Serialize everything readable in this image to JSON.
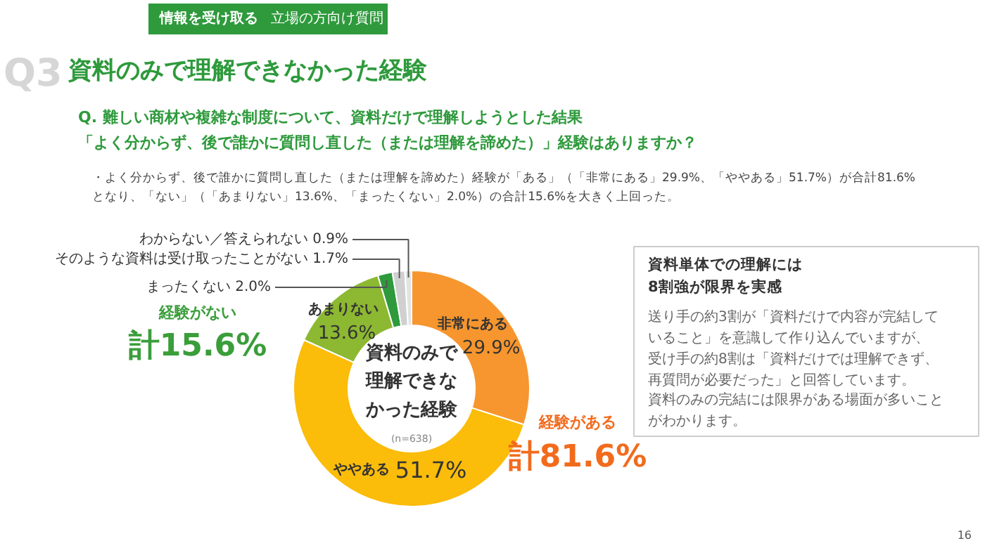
{
  "chart_data": {
    "type": "donut",
    "title": "資料のみで理解できなかった経験",
    "subtitle": "Q. 難しい商材や複雑な制度について、資料だけで理解しようとした結果「よく分からず、後で誰かに質問し直した（または理解を諦めた）」経験はありますか？",
    "categories": [
      "非常にある",
      "ややある",
      "あまりない",
      "まったくない",
      "そのような資料は受け取ったことがない",
      "わからない／答えられない"
    ],
    "values": [
      29.9,
      51.7,
      13.6,
      2.0,
      1.7,
      0.9
    ],
    "value_labels": [
      "29.9%",
      "51.7%",
      "13.6%",
      "2.0%",
      "1.7%",
      "0.9%"
    ],
    "colors": [
      "#f7962e",
      "#fbbc0a",
      "#8cb832",
      "#2e9a3c",
      "#d0d0d0",
      "#e3e3e3"
    ],
    "annotations": [
      "情報を受け取る",
      "立場の方向け質問",
      "Q3",
      "・よく分からず、後で誰かに質問し直した（または理解を諦めた）経験が「ある」（「非常にある」29.9%、「ややある」51.7%）が合計81.6%となり、「ない」（「あまりない」13.6%、「まったくない」2.0%）の合計15.6%を大きく上回った。",
      "資料のみで理解できなかった経験",
      "(n=638)",
      "経験がある",
      "計81.6%",
      "経験がない",
      "計15.6%",
      "資料単体での理解には\n8割強が限界を実感",
      "送り手の約3割が「資料だけで内容が完結していること」を意識して作り込んでいますが、受け手の約8割は「資料だけでは理解できず、再質問が必要だった」と回答しています。",
      "資料のみの完結には限界がある場面が多いことがわかります。",
      "16"
    ]
  }
}
